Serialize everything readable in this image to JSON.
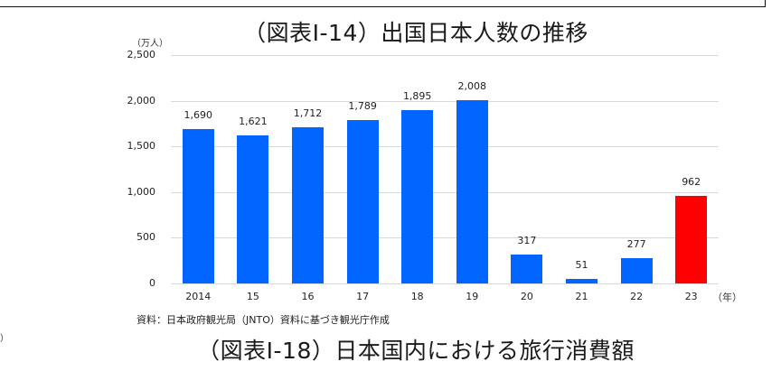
{
  "title": "（図表Ⅰ-14）出国日本人数の推移",
  "next_title": "（図表Ⅰ-18）日本国内における旅行消費額",
  "unit_label": "（万人）",
  "year_unit_label": "（年）",
  "source": "資料：日本政府観光局（JNTO）資料に基づき観光庁作成",
  "stray_text": "）",
  "colors": {
    "bar": "#0066ff",
    "highlight": "#ff0000",
    "grid": "#d9d9d9"
  },
  "chart_data": {
    "type": "bar",
    "title": "（図表Ⅰ-14）出国日本人数の推移",
    "xlabel": "（年）",
    "ylabel": "（万人）",
    "categories": [
      "2014",
      "15",
      "16",
      "17",
      "18",
      "19",
      "20",
      "21",
      "22",
      "23"
    ],
    "values": [
      1690,
      1621,
      1712,
      1789,
      1895,
      2008,
      317,
      51,
      277,
      962
    ],
    "value_labels": [
      "1,690",
      "1,621",
      "1,712",
      "1,789",
      "1,895",
      "2,008",
      "317",
      "51",
      "277",
      "962"
    ],
    "highlight_index": 9,
    "ylim": [
      0,
      2500
    ],
    "yticks": [
      "0",
      "500",
      "1,000",
      "1,500",
      "2,000",
      "2,500"
    ],
    "grid": true,
    "legend": null
  }
}
